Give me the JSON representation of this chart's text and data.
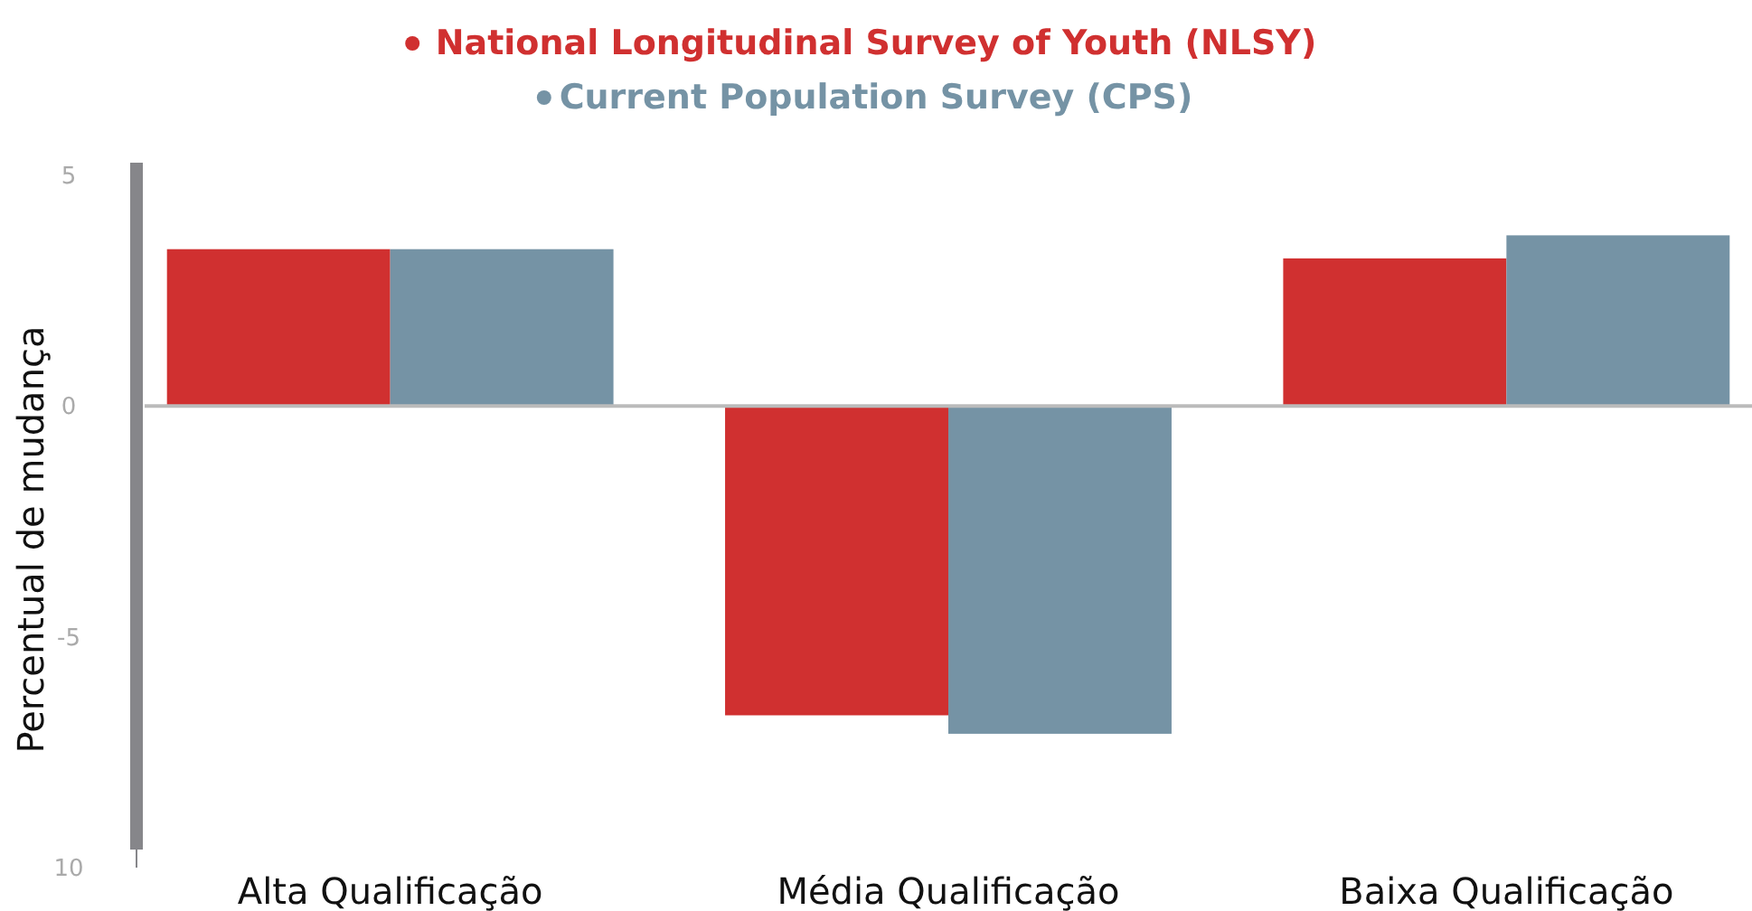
{
  "chart_data": {
    "type": "bar",
    "ylabel": "Percentual de mudança",
    "categories": [
      "Alta Qualificação",
      "Média Qualificação",
      "Baixa Qualificação"
    ],
    "series": [
      {
        "name": "National Longitudinal Survey of Youth (NLSY)",
        "color": "#d03030",
        "values": [
          3.4,
          -6.7,
          3.2
        ]
      },
      {
        "name": "Current Population Survey (CPS)",
        "color": "#7593a5",
        "values": [
          3.4,
          -7.1,
          3.7
        ]
      }
    ],
    "ylim": [
      -10,
      5
    ],
    "yticks": [
      5,
      0,
      -5,
      {
        "value": -10,
        "label": "10"
      }
    ],
    "legend": "top"
  }
}
